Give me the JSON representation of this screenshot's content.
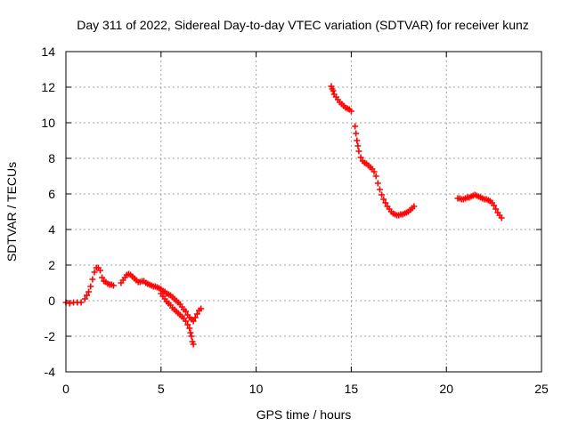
{
  "chart_data": {
    "type": "scatter",
    "title": "Day 311 of 2022, Sidereal Day-to-day VTEC variation (SDTVAR) for receiver kunz",
    "xlabel": "GPS time / hours",
    "ylabel": "SDTVAR / TECUs",
    "xlim": [
      0,
      25
    ],
    "ylim": [
      -4,
      14
    ],
    "xticks": [
      0,
      5,
      10,
      15,
      20,
      25
    ],
    "yticks": [
      -4,
      -2,
      0,
      2,
      4,
      6,
      8,
      10,
      12,
      14
    ],
    "grid": true,
    "marker": "+",
    "color": "#ff0000",
    "series": [
      {
        "name": "segment-1",
        "x": [
          0.0,
          0.2,
          0.4,
          0.6,
          0.8,
          1.0,
          1.1,
          1.2,
          1.3,
          1.4,
          1.5,
          1.6,
          1.7,
          1.8,
          1.9,
          2.0,
          2.1,
          2.2,
          2.3,
          2.4,
          2.5
        ],
        "y": [
          -0.1,
          -0.15,
          -0.1,
          -0.1,
          -0.1,
          0.1,
          0.3,
          0.5,
          0.8,
          1.2,
          1.6,
          1.85,
          1.85,
          1.7,
          1.3,
          1.1,
          1.05,
          0.95,
          0.9,
          0.9,
          0.85
        ]
      },
      {
        "name": "segment-2",
        "x": [
          2.9,
          3.0,
          3.1,
          3.2,
          3.3,
          3.4,
          3.5,
          3.6,
          3.7,
          3.8,
          3.9,
          4.0,
          4.1,
          4.2,
          4.3,
          4.4,
          4.5,
          4.6,
          4.7,
          4.8,
          4.9,
          5.0,
          5.1,
          5.2,
          5.3,
          5.4,
          5.5,
          5.6,
          5.7,
          5.8,
          5.9,
          6.0,
          6.1,
          6.2,
          6.3,
          6.4,
          6.5,
          6.6,
          6.7,
          6.8,
          6.9,
          7.0,
          7.1
        ],
        "y": [
          1.0,
          1.15,
          1.3,
          1.45,
          1.5,
          1.45,
          1.35,
          1.25,
          1.15,
          1.05,
          1.05,
          1.1,
          1.1,
          1.0,
          0.95,
          0.9,
          0.85,
          0.8,
          0.8,
          0.75,
          0.7,
          0.65,
          0.55,
          0.5,
          0.4,
          0.35,
          0.3,
          0.2,
          0.1,
          0.0,
          -0.1,
          -0.2,
          -0.35,
          -0.5,
          -0.6,
          -0.8,
          -0.95,
          -1.05,
          -1.15,
          -0.95,
          -0.75,
          -0.55,
          -0.45
        ]
      },
      {
        "name": "segment-3",
        "x": [
          5.0,
          5.1,
          5.2,
          5.3,
          5.4,
          5.5,
          5.6,
          5.7,
          5.8,
          5.9,
          6.0,
          6.1,
          6.2,
          6.3,
          6.4,
          6.5,
          6.55,
          6.6,
          6.65,
          6.7
        ],
        "y": [
          0.4,
          0.25,
          0.1,
          -0.05,
          -0.15,
          -0.25,
          -0.4,
          -0.5,
          -0.6,
          -0.7,
          -0.8,
          -0.9,
          -1.0,
          -1.15,
          -1.35,
          -1.55,
          -1.8,
          -2.0,
          -2.3,
          -2.45
        ]
      },
      {
        "name": "segment-4",
        "x": [
          13.95,
          14.0,
          14.05,
          14.1,
          14.2,
          14.3,
          14.4,
          14.5,
          14.6,
          14.7,
          14.8,
          14.9,
          15.0
        ],
        "y": [
          12.05,
          11.9,
          11.8,
          11.6,
          11.45,
          11.3,
          11.15,
          11.05,
          10.95,
          10.85,
          10.8,
          10.75,
          10.65
        ]
      },
      {
        "name": "segment-5",
        "x": [
          15.2,
          15.25,
          15.3,
          15.35,
          15.4,
          15.5,
          15.6,
          15.7,
          15.8,
          15.9,
          16.0,
          16.1,
          16.2,
          16.3,
          16.4,
          16.5,
          16.6,
          16.7,
          16.8,
          16.9,
          17.0,
          17.1,
          17.2,
          17.3,
          17.4,
          17.5,
          17.6,
          17.7,
          17.8,
          17.9,
          18.0,
          18.1,
          18.2,
          18.3
        ],
        "y": [
          9.8,
          9.4,
          9.0,
          8.7,
          8.4,
          8.05,
          7.85,
          7.75,
          7.7,
          7.6,
          7.5,
          7.4,
          7.25,
          7.0,
          6.6,
          6.25,
          5.95,
          5.7,
          5.5,
          5.3,
          5.15,
          5.0,
          4.9,
          4.85,
          4.8,
          4.8,
          4.85,
          4.85,
          4.9,
          4.95,
          5.0,
          5.1,
          5.2,
          5.3
        ]
      },
      {
        "name": "segment-6",
        "x": [
          20.6,
          20.7,
          20.8,
          20.9,
          21.0,
          21.1,
          21.2,
          21.3,
          21.4,
          21.5,
          21.6,
          21.7,
          21.8,
          21.9,
          22.0,
          22.1,
          22.2,
          22.3,
          22.4,
          22.5,
          22.6,
          22.7,
          22.8,
          22.9
        ],
        "y": [
          5.75,
          5.75,
          5.7,
          5.7,
          5.75,
          5.8,
          5.8,
          5.85,
          5.9,
          5.95,
          5.9,
          5.85,
          5.8,
          5.75,
          5.7,
          5.7,
          5.65,
          5.6,
          5.5,
          5.35,
          5.15,
          4.95,
          4.8,
          4.65
        ]
      }
    ]
  }
}
